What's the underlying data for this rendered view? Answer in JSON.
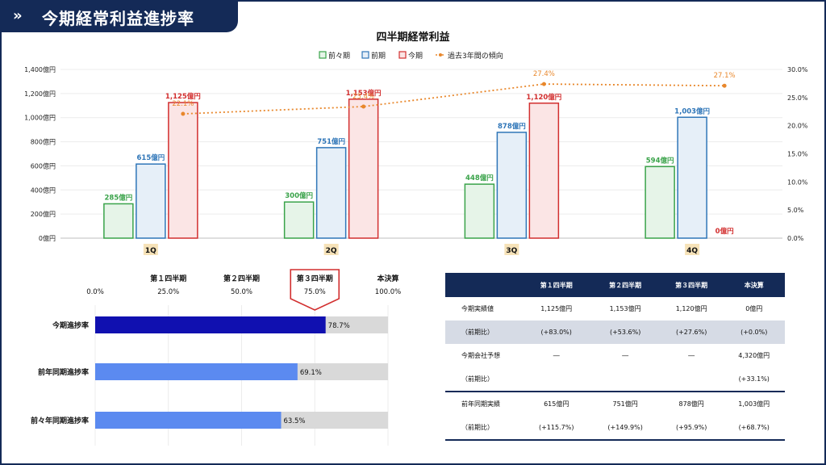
{
  "header": {
    "title": "今期経常利益進捗率",
    "icon": "double-chevron-icon"
  },
  "chart_data": [
    {
      "type": "bar",
      "title": "四半期経常利益",
      "categories": [
        "1Q",
        "2Q",
        "3Q",
        "4Q"
      ],
      "series": [
        {
          "name": "前々期",
          "values": [
            285,
            300,
            448,
            594
          ],
          "labels": [
            "285億円",
            "300億円",
            "448億円",
            "594億円"
          ],
          "color": "#3aa34a",
          "fill": "#e6f4e8"
        },
        {
          "name": "前期",
          "values": [
            615,
            751,
            878,
            1003
          ],
          "labels": [
            "615億円",
            "751億円",
            "878億円",
            "1,003億円"
          ],
          "color": "#2f76b8",
          "fill": "#e6eff8"
        },
        {
          "name": "今期",
          "values": [
            1125,
            1153,
            1120,
            0
          ],
          "labels": [
            "1,125億円",
            "1,153億円",
            "1,120億円",
            "0億円"
          ],
          "color": "#d22f2f",
          "fill": "#fbe5e5"
        }
      ],
      "line_series": {
        "name": "過去3年間の傾向",
        "values": [
          22.1,
          23.4,
          27.4,
          27.1
        ],
        "labels": [
          "22.1%",
          "23.4%",
          "27.4%",
          "27.1%"
        ],
        "color": "#e8872b"
      },
      "y_left": {
        "min": 0,
        "max": 1400,
        "ticks": [
          "0億円",
          "200億円",
          "400億円",
          "600億円",
          "800億円",
          "1,000億円",
          "1,200億円",
          "1,400億円"
        ]
      },
      "y_right": {
        "min": 0,
        "max": 30,
        "ticks": [
          "0.0%",
          "5.0%",
          "10.0%",
          "15.0%",
          "20.0%",
          "25.0%",
          "30.0%"
        ]
      },
      "legend_position": "top-center",
      "grid": true
    },
    {
      "type": "bar",
      "orientation": "horizontal",
      "categories": [
        "今期進捗率",
        "前年同期進捗率",
        "前々年同期進捗率"
      ],
      "values": [
        78.7,
        69.1,
        63.5
      ],
      "labels": [
        "78.7%",
        "69.1%",
        "63.5%"
      ],
      "colors": [
        "#1010b0",
        "#5b8af0",
        "#5b8af0"
      ],
      "track_color": "#d9d9d9",
      "xlim": [
        0,
        100
      ],
      "x_ticks": [
        "0.0%",
        "25.0%",
        "50.0%",
        "75.0%",
        "100.0%"
      ],
      "milestones": [
        "第１四半期",
        "第２四半期",
        "第３四半期",
        "本決算"
      ],
      "highlight_milestone": "第３四半期"
    }
  ],
  "table": {
    "headers": [
      "",
      "第１四半期",
      "第２四半期",
      "第３四半期",
      "本決算"
    ],
    "rows": [
      {
        "label": "今期実績値",
        "cells": [
          "1,125億円",
          "1,153億円",
          "1,120億円",
          "0億円"
        ]
      },
      {
        "label": "（前期比）",
        "cells": [
          "(+83.0%)",
          "(+53.6%)",
          "(+27.6%)",
          "(+0.0%)"
        ]
      },
      {
        "label": "今期会社予想",
        "cells": [
          "―",
          "―",
          "―",
          "4,320億円"
        ]
      },
      {
        "label": "（前期比）",
        "cells": [
          "",
          "",
          "",
          "(+33.1%)"
        ]
      },
      {
        "label": "前年同期実績",
        "cells": [
          "615億円",
          "751億円",
          "878億円",
          "1,003億円"
        ]
      },
      {
        "label": "（前期比）",
        "cells": [
          "(+115.7%)",
          "(+149.9%)",
          "(+95.9%)",
          "(+68.7%)"
        ]
      }
    ]
  }
}
